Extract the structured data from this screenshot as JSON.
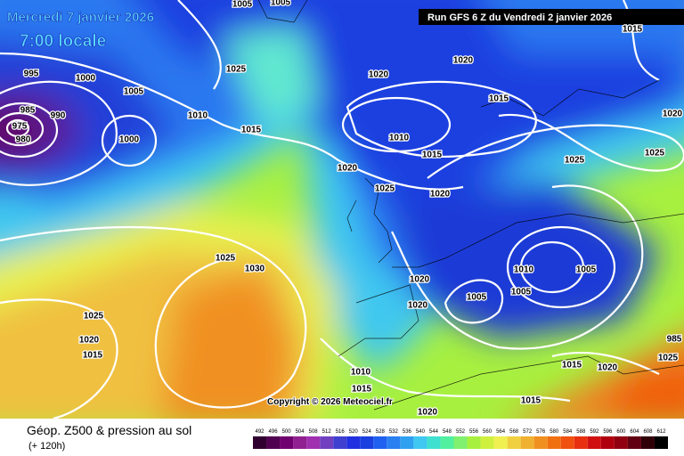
{
  "header": {
    "date": "Mercredi 7 janvier 2026",
    "time": "7:00 locale",
    "run": "Run GFS 6 Z du Vendredi 2 janvier 2026"
  },
  "copyright": "Copyright © 2026 Meteociel.fr",
  "footer": {
    "title": "Géop. Z500 & pression au sol",
    "subtitle": "(+ 120h)"
  },
  "isobar_labels": [
    "1005",
    "1005",
    "1015",
    "995",
    "1000",
    "1025",
    "1020",
    "1020",
    "1005",
    "985",
    "990",
    "975",
    "980",
    "1010",
    "1000",
    "1015",
    "1010",
    "1015",
    "1015",
    "1020",
    "1025",
    "1025",
    "1020",
    "1025",
    "1020",
    "1025",
    "1030",
    "1010",
    "1005",
    "1020",
    "1005",
    "1005",
    "1020",
    "1025",
    "1020",
    "1015",
    "985",
    "1025",
    "1015",
    "1020",
    "1010",
    "1015",
    "1015",
    "1020"
  ],
  "legend": {
    "labels": [
      492,
      496,
      500,
      504,
      508,
      512,
      516,
      520,
      524,
      528,
      532,
      536,
      540,
      544,
      548,
      552,
      556,
      560,
      564,
      568,
      572,
      576,
      580,
      584,
      588,
      592,
      596,
      600,
      604,
      608,
      612
    ],
    "colors": [
      "#300030",
      "#500050",
      "#700070",
      "#902090",
      "#a030b0",
      "#7040c0",
      "#4040d0",
      "#2030e0",
      "#1a40e0",
      "#2060f0",
      "#2a80f0",
      "#30a0f0",
      "#40c8f0",
      "#40e0d0",
      "#50f0a0",
      "#80f070",
      "#a8f040",
      "#d0f040",
      "#f0f050",
      "#f0d040",
      "#f0b030",
      "#f09020",
      "#f07010",
      "#f05010",
      "#e83010",
      "#d01010",
      "#b00010",
      "#900010",
      "#600010",
      "#300008",
      "#000000"
    ]
  }
}
